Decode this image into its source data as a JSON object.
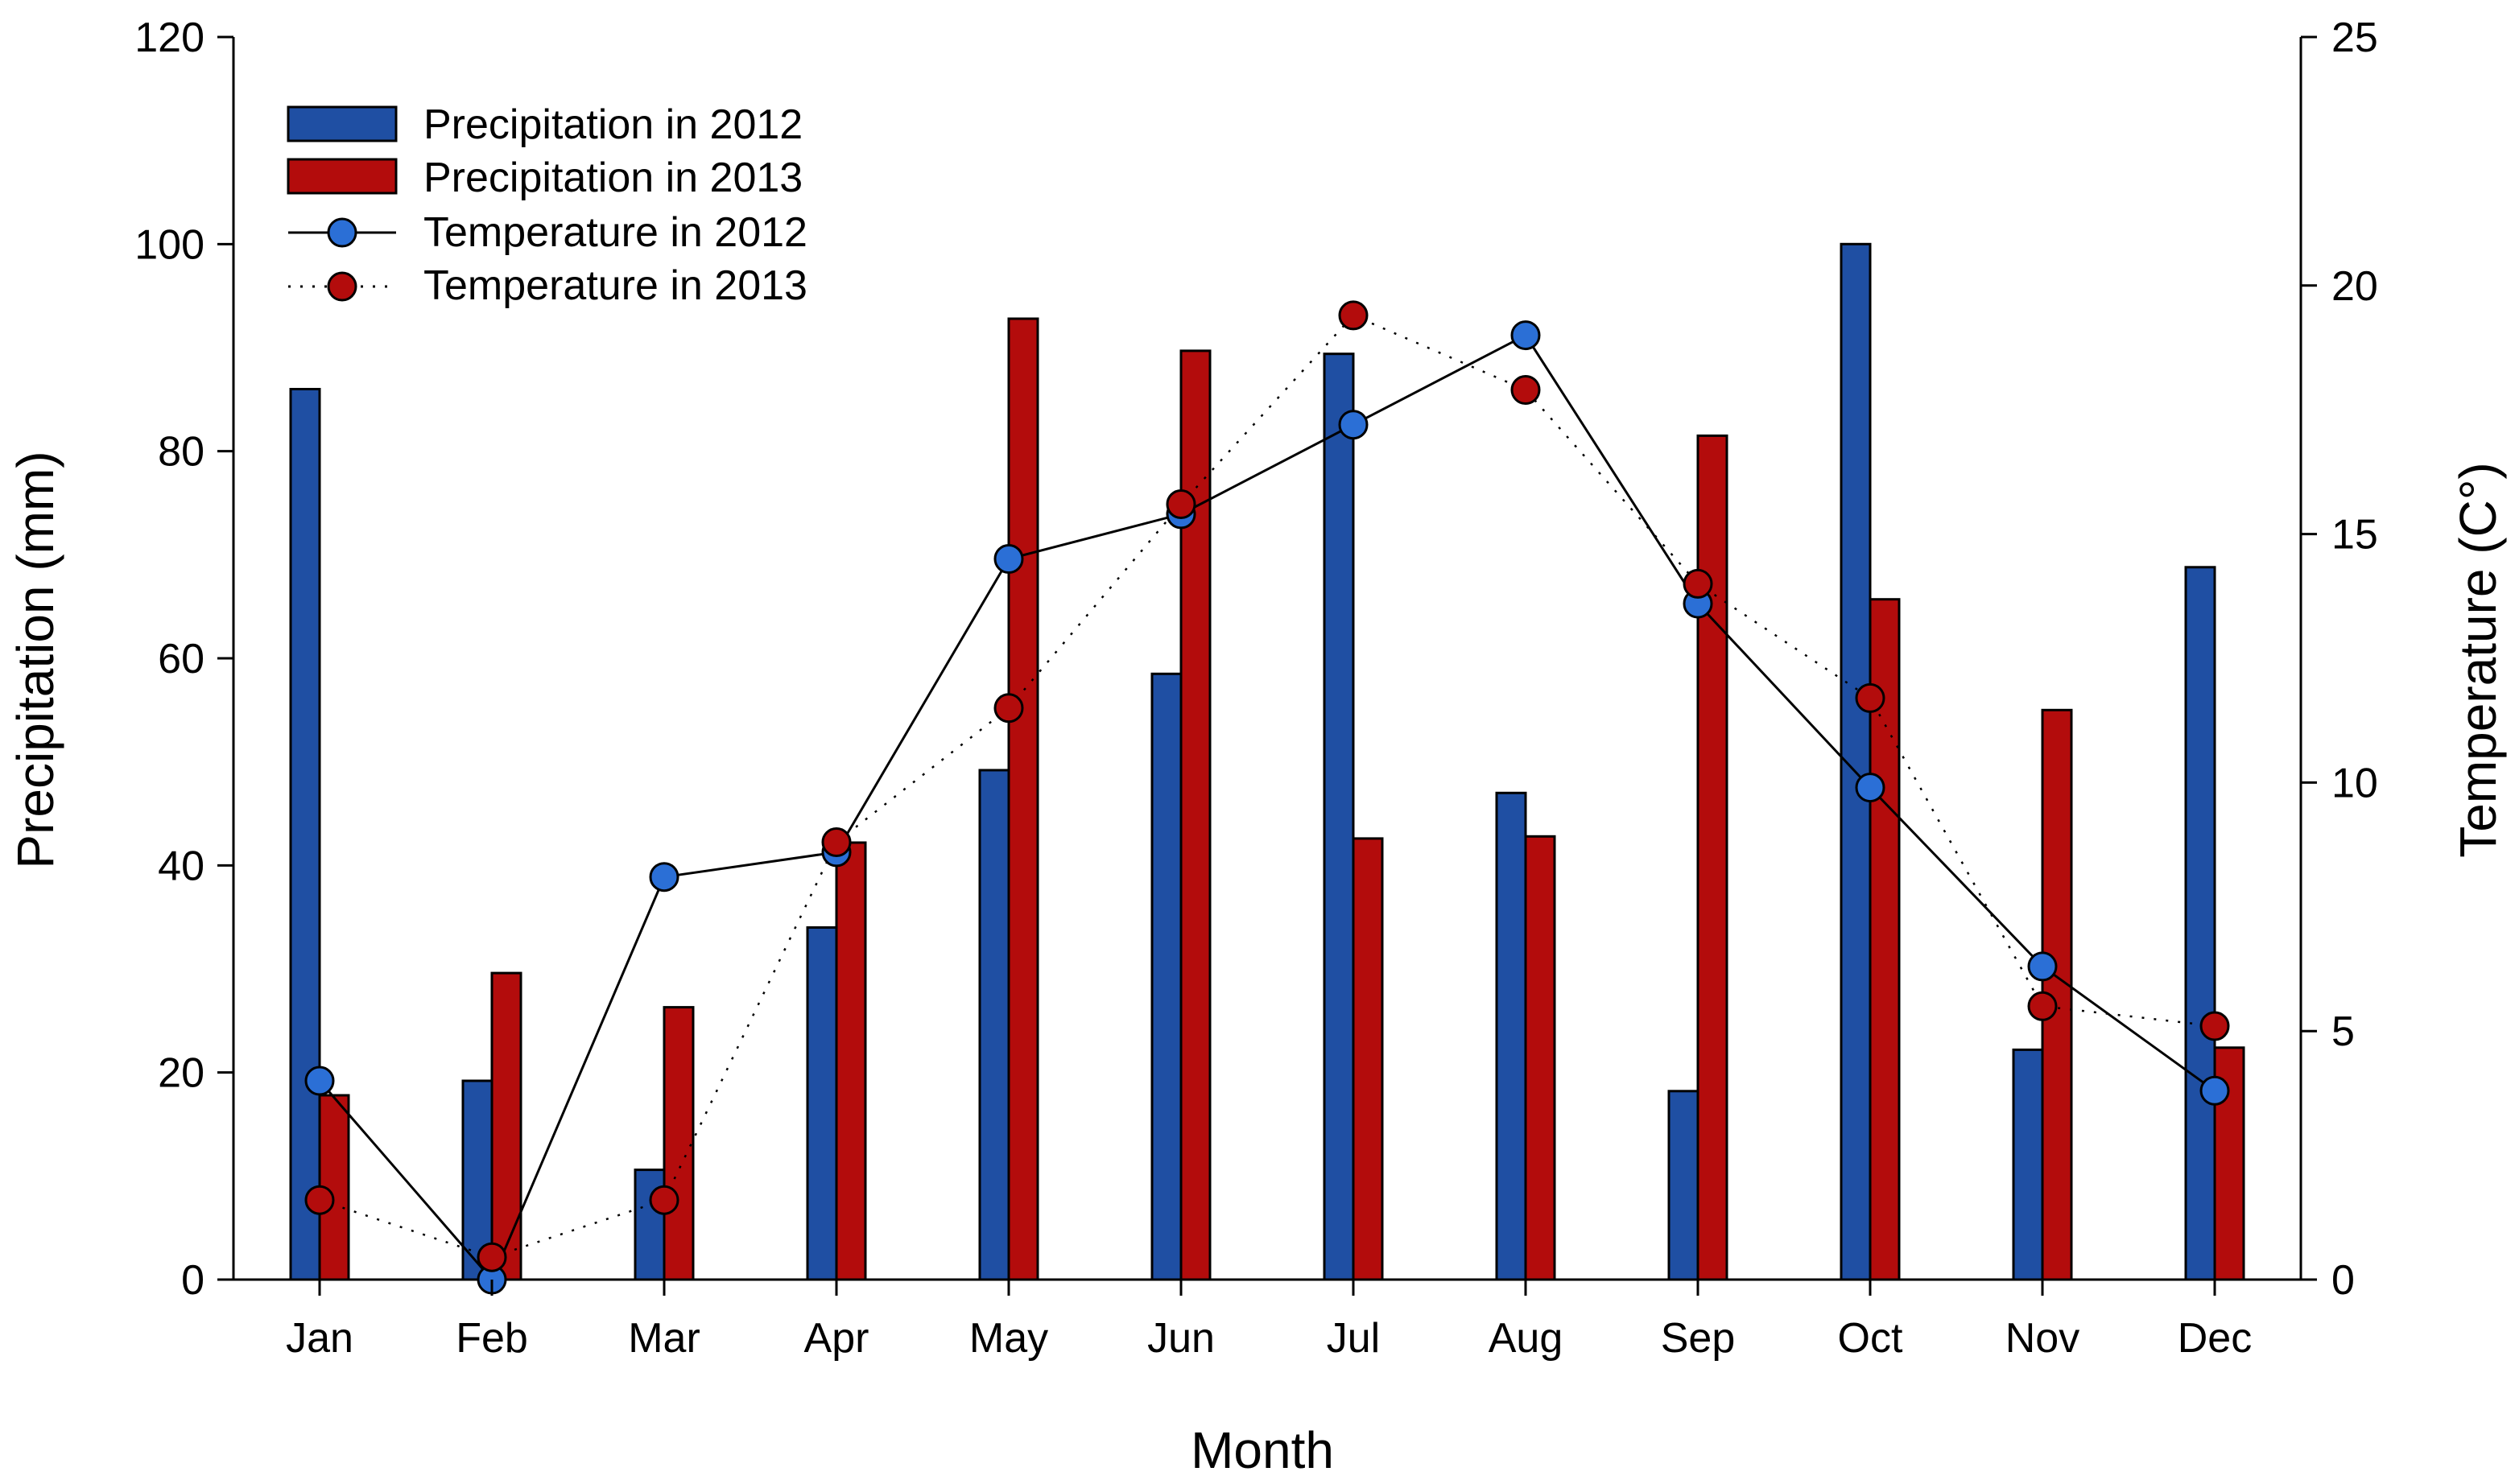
{
  "chart_data": {
    "type": "bar",
    "title": "",
    "xlabel": "Month",
    "ylabel": "Precipitation (mm)",
    "y2label": "Temperature (C°)",
    "ylim": [
      0,
      120
    ],
    "y2lim": [
      0,
      25
    ],
    "yticks": [
      "0",
      "20",
      "40",
      "60",
      "80",
      "100",
      "120"
    ],
    "y2ticks": [
      "0",
      "5",
      "10",
      "15",
      "20",
      "25"
    ],
    "categories": [
      "Jan",
      "Feb",
      "Mar",
      "Apr",
      "May",
      "Jun",
      "Jul",
      "Aug",
      "Sep",
      "Oct",
      "Nov",
      "Dec"
    ],
    "bar_series": [
      {
        "name": "Precipitation in 2012",
        "color": "#1f4fa3",
        "values": [
          86,
          19.2,
          10.6,
          34,
          49.2,
          58.5,
          89.4,
          47,
          18.2,
          100,
          22.2,
          68.8
        ]
      },
      {
        "name": "Precipitation in 2013",
        "color": "#b30c0c",
        "values": [
          17.8,
          29.6,
          26.3,
          42.2,
          92.8,
          89.7,
          42.6,
          42.8,
          81.5,
          65.7,
          55,
          22.4
        ]
      }
    ],
    "line_series": [
      {
        "name": "Temperature in 2012",
        "color": "#2b6fd6",
        "style": "solid",
        "values": [
          4,
          0,
          8.1,
          8.6,
          14.5,
          15.4,
          17.2,
          19,
          13.6,
          9.9,
          6.3,
          3.8
        ]
      },
      {
        "name": "Temperature in 2013",
        "color": "#b30c0c",
        "style": "dotted",
        "values": [
          1.6,
          0.45,
          1.6,
          8.8,
          11.5,
          15.6,
          19.4,
          17.9,
          14,
          11.7,
          5.5,
          5.1
        ]
      }
    ],
    "legend": "top-left"
  }
}
